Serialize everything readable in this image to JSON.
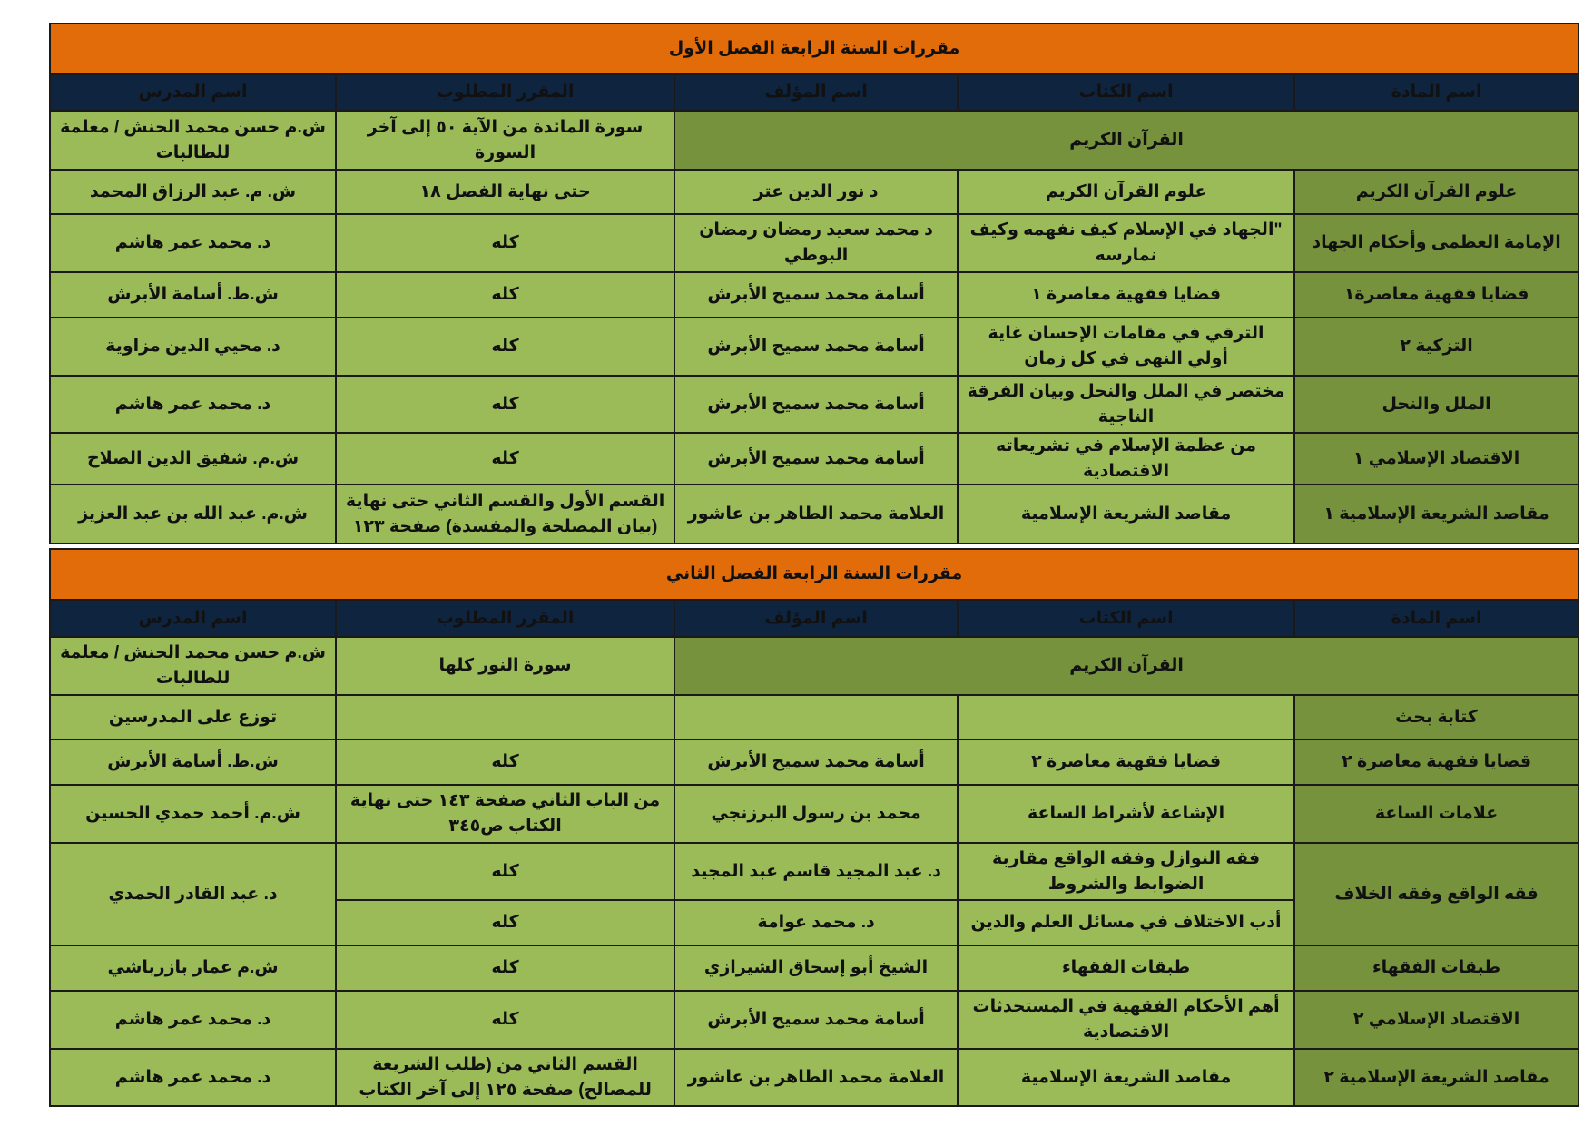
{
  "colors": {
    "title_bg": "#E26B0A",
    "title_text": "#FFFF00",
    "header_bg": "#0F243E",
    "cell_light": "#9BBB59",
    "cell_dark": "#76923C"
  },
  "columns": [
    "اسم المادة",
    "اسم الكتاب",
    "اسم المؤلف",
    "المقرر المطلوب",
    "اسم المدرس"
  ],
  "tables": [
    {
      "title": "مقررات السنة الرابعة الفصل الأول",
      "rows": [
        {
          "subject": "القرآن الكريم",
          "merged": true,
          "required": "سورة المائدة من الآية ٥٠ إلى آخر السورة",
          "teacher": "ش.م  حسن محمد الحنش / معلمة للطالبات"
        },
        {
          "subject": "علوم القرآن الكريم",
          "book": "علوم القرآن الكريم",
          "author": "د  نور الدين عتر",
          "required": "حتى نهاية الفصل ١٨",
          "teacher": "ش. م. عبد الرزاق المحمد"
        },
        {
          "subject": "الإمامة العظمى وأحكام الجهاد",
          "book": "\"الجهاد في الإسلام كيف نفهمه  وكيف نمارسه",
          "author": "د  محمد سعيد رمضان رمضان البوطي",
          "required": "كله",
          "teacher": "د. محمد عمر هاشم"
        },
        {
          "subject": "قضايا فقهية معاصرة١",
          "book": "قضايا فقهية معاصرة ١",
          "author": "أسامة محمد سميح الأبرش",
          "required": "كله",
          "teacher": "ش.ط. أسامة الأبرش"
        },
        {
          "subject": "التزكية ٢",
          "book": "الترقي في مقامات الإحسان غاية أولي النهى في كل زمان",
          "author": "أسامة محمد سميح الأبرش",
          "required": "كله",
          "teacher": "د. محيي الدين مزاوية"
        },
        {
          "subject": "الملل والنحل",
          "book": "مختصر في الملل والنحل وبيان الفرقة الناجية",
          "author": "أسامة محمد سميح الأبرش",
          "required": "كله",
          "teacher": "د. محمد عمر هاشم"
        },
        {
          "subject": "الاقتصاد الإسلامي ١",
          "book": "من عظمة الإسلام في تشريعاته الاقتصادية",
          "author": "أسامة محمد سميح الأبرش",
          "required": "كله",
          "teacher": "ش.م. شفيق الدين الصلاح"
        },
        {
          "subject": "مقاصد الشريعة الإسلامية ١",
          "book": "مقاصد الشريعة الإسلامية",
          "author": "العلامة محمد الطاهر بن عاشور",
          "required": "القسم الأول والقسم الثاني حتى نهاية (بيان المصلحة والمفسدة) صفحة ١٢٣",
          "teacher": "ش.م. عبد الله بن عبد العزيز"
        }
      ]
    },
    {
      "title": "مقررات السنة الرابعة الفصل الثاني",
      "rows": [
        {
          "subject": "القرآن الكريم",
          "merged": true,
          "required": "سورة النور كلها",
          "teacher": "ش.م  حسن محمد الحنش / معلمة للطالبات"
        },
        {
          "subject": "كتابة بحث",
          "book": "",
          "author": "",
          "required": "",
          "teacher": "توزع على المدرسين"
        },
        {
          "subject": "قضايا فقهية معاصرة ٢",
          "book": "قضايا فقهية معاصرة ٢",
          "author": "أسامة محمد سميح الأبرش",
          "required": "كله",
          "teacher": "ش.ط. أسامة الأبرش"
        },
        {
          "subject": "علامات الساعة",
          "book": "الإشاعة لأشراط الساعة",
          "author": "محمد بن رسول البرزنجي",
          "required": "من الباب الثاني صفحة ١٤٣ حتى نهاية الكتاب ص٣٤٥",
          "teacher": "ش.م. أحمد حمدي الحسين"
        },
        {
          "subject": "فقه الواقع وفقه الخلاف",
          "teacher": "د. عبد القادر الحمدي",
          "books": [
            {
              "book": "فقه النوازل وفقه الواقع مقاربة الضوابط والشروط",
              "author": "د. عبد المجيد قاسم عبد المجيد",
              "required": "كله"
            },
            {
              "book": "أدب الاختلاف في مسائل العلم والدين",
              "author": "د. محمد عوامة",
              "required": "كله"
            }
          ]
        },
        {
          "subject": "طبقات الفقهاء",
          "book": "طبقات الفقهاء",
          "author": "الشيخ أبو إسحاق الشيرازي",
          "required": "كله",
          "teacher": "ش.م  عمار بازرباشي"
        },
        {
          "subject": "الاقتصاد الإسلامي ٢",
          "book": "أهم الأحكام الفقهية في المستحدثات الاقتصادية",
          "author": "أسامة محمد سميح الأبرش",
          "required": "كله",
          "teacher": "د. محمد عمر هاشم"
        },
        {
          "subject": "مقاصد الشريعة الإسلامية ٢",
          "book": "مقاصد الشريعة الإسلامية",
          "author": "العلامة محمد الطاهر بن عاشور",
          "required": "القسم الثاني من (طلب الشريعة للمصالح) صفحة ١٢٥ إلى آخر الكتاب",
          "teacher": "د. محمد عمر هاشم"
        }
      ]
    }
  ]
}
